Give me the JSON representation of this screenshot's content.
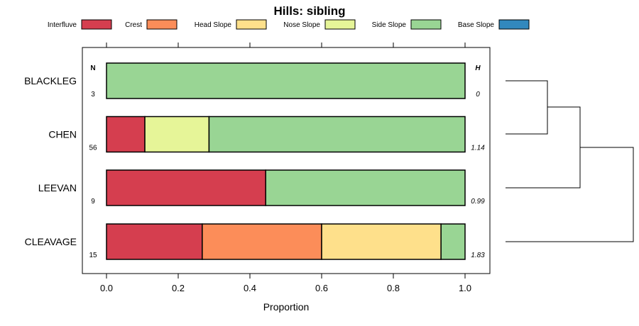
{
  "chart_data": {
    "type": "bar",
    "orientation": "horizontal",
    "stacked": true,
    "title": "Hills: sibling",
    "xlabel": "Proportion",
    "ylabel": "",
    "xlim": [
      0,
      1
    ],
    "xticks": [
      "0.0",
      "0.2",
      "0.4",
      "0.6",
      "0.8",
      "1.0"
    ],
    "legend_position": "top",
    "series": [
      {
        "name": "Interfluve",
        "color": "#d53e4f"
      },
      {
        "name": "Crest",
        "color": "#fc8d59"
      },
      {
        "name": "Head Slope",
        "color": "#fee08b"
      },
      {
        "name": "Nose Slope",
        "color": "#e6f598"
      },
      {
        "name": "Side Slope",
        "color": "#99d594"
      },
      {
        "name": "Base Slope",
        "color": "#3288bd"
      }
    ],
    "n_header": "N",
    "h_header": "H",
    "categories": [
      {
        "name": "BLACKLEG",
        "n": "3",
        "h": "0",
        "values": [
          0,
          0,
          0,
          0,
          1.0,
          0
        ]
      },
      {
        "name": "CHEN",
        "n": "56",
        "h": "1.14",
        "values": [
          0.107,
          0,
          0,
          0.179,
          0.714,
          0
        ]
      },
      {
        "name": "LEEVAN",
        "n": "9",
        "h": "0.99",
        "values": [
          0.444,
          0,
          0,
          0,
          0.556,
          0
        ]
      },
      {
        "name": "CLEAVAGE",
        "n": "15",
        "h": "1.83",
        "values": [
          0.267,
          0.333,
          0.333,
          0,
          0.067,
          0
        ]
      }
    ],
    "dendrogram": "hierarchical clustering of sites: BLACKLEG+CHEN, then LEEVAN, then CLEAVAGE"
  }
}
